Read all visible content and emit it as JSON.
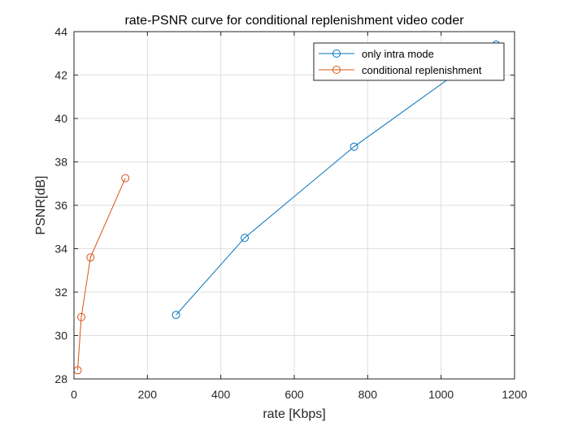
{
  "chart_data": {
    "type": "line",
    "title": "rate-PSNR curve for conditional replenishment video coder",
    "xlabel": "rate [Kbps]",
    "ylabel": "PSNR[dB]",
    "xlim": [
      0,
      1200
    ],
    "ylim": [
      28,
      44
    ],
    "xticks": [
      0,
      200,
      400,
      600,
      800,
      1000,
      1200
    ],
    "yticks": [
      28,
      30,
      32,
      34,
      36,
      38,
      40,
      42,
      44
    ],
    "grid": true,
    "legend_position": "top-right",
    "series": [
      {
        "name": "only intra mode",
        "color": "#0072BD",
        "marker": "circle",
        "x": [
          278,
          465,
          763,
          1150
        ],
        "y": [
          30.95,
          34.5,
          38.7,
          43.4
        ]
      },
      {
        "name": "conditional replenishment",
        "color": "#D95319",
        "marker": "circle",
        "x": [
          10,
          20,
          45,
          140
        ],
        "y": [
          28.4,
          30.85,
          33.6,
          37.25
        ]
      }
    ]
  }
}
